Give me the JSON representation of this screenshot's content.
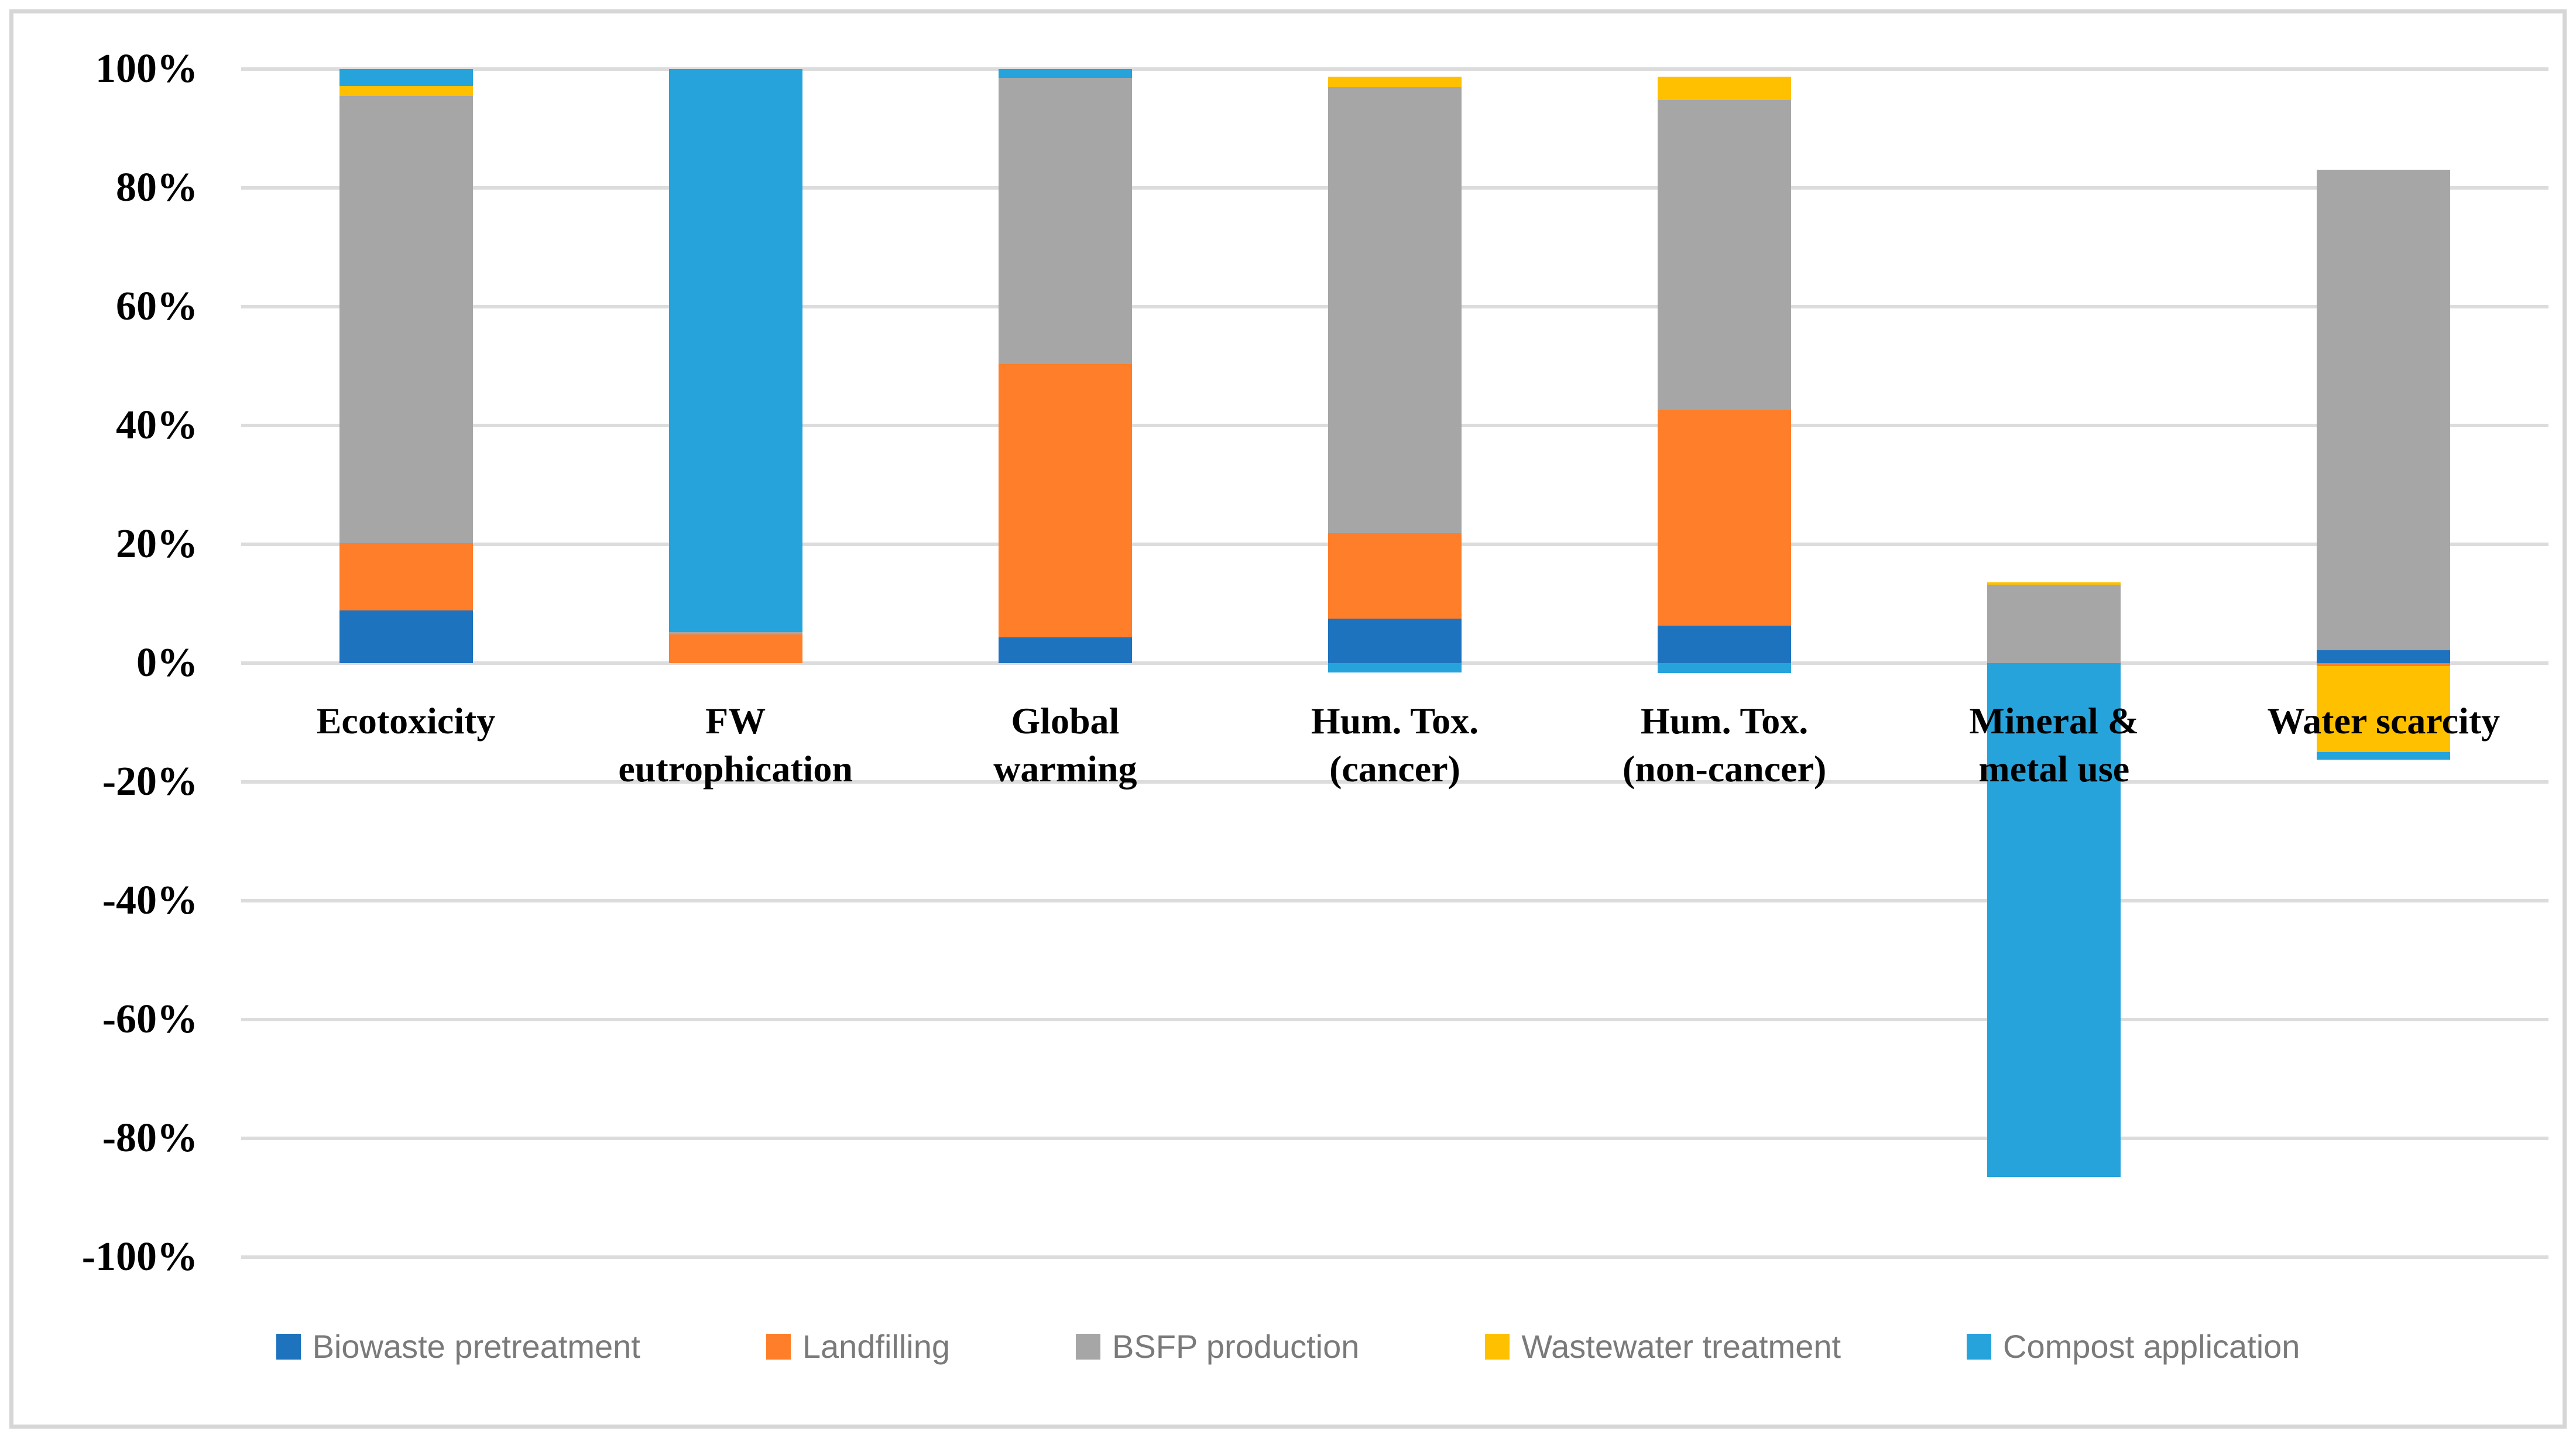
{
  "chart": {
    "y_axis_ticks": [
      "100%",
      "80%",
      "60%",
      "40%",
      "20%",
      "0%",
      "-20%",
      "-40%",
      "-60%",
      "-80%",
      "-100%"
    ],
    "background_color": "#FFFFFF",
    "gridline_color": "#DCDCDC",
    "frame_color": "#D6D6D6",
    "legend_text_color": "#7A7A7A"
  },
  "chart_data": {
    "type": "bar",
    "stacked": true,
    "normalized_percent": true,
    "title": "",
    "xlabel": "",
    "ylabel": "",
    "ylim": [
      -100,
      100
    ],
    "ytick_step": 20,
    "grid": true,
    "legend_position": "bottom",
    "categories": [
      "Ecotoxicity",
      "FW\neutrophication",
      "Global\nwarming",
      "Hum. Tox.\n(cancer)",
      "Hum. Tox.\n(non-cancer)",
      "Mineral &\nmetal use",
      "Water scarcity"
    ],
    "series": [
      {
        "name": "Biowaste pretreatment",
        "color": "#1E73BE",
        "values": [
          8.9,
          0,
          4.3,
          7.5,
          6.3,
          0,
          2.2
        ]
      },
      {
        "name": "Landfilling",
        "color": "#FF7E29",
        "values": [
          11.3,
          4.8,
          46.0,
          14.4,
          36.4,
          0,
          -0.5
        ]
      },
      {
        "name": "BSFP production",
        "color": "#A6A6A6",
        "values": [
          75.3,
          0.4,
          48.2,
          75.0,
          52.1,
          13.2,
          80.9
        ]
      },
      {
        "name": "Wastewater treatment",
        "color": "#FFC000",
        "values": [
          1.6,
          0,
          0,
          1.8,
          3.9,
          0.4,
          -14.5
        ]
      },
      {
        "name": "Compost application",
        "color": "#27A3DC",
        "values": [
          2.9,
          94.8,
          1.5,
          -1.6,
          -1.7,
          -86.5,
          -1.3
        ]
      }
    ]
  }
}
